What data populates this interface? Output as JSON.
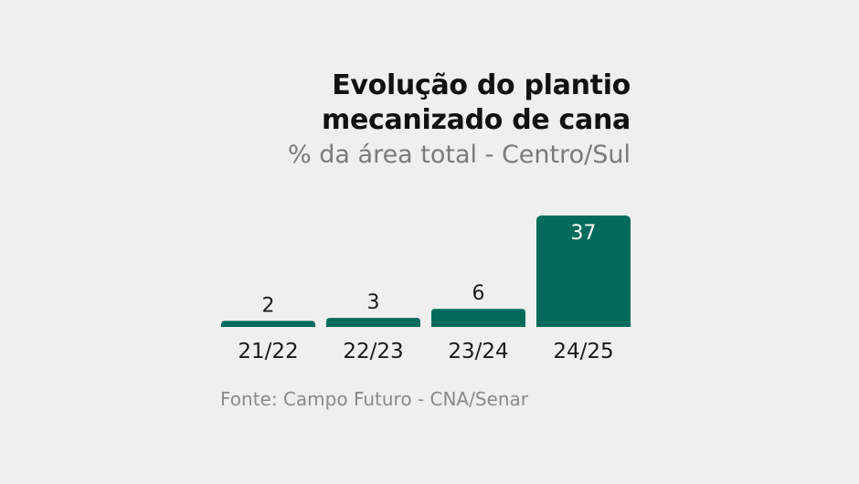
{
  "title_line1": "Evolução do plantio",
  "title_line2": "mecanizado de cana",
  "subtitle": "% da área total - Centro/Sul",
  "source": "Fonte: Campo Futuro - CNA/Senar",
  "colors": {
    "bar": "#036b5b",
    "background": "#efefef",
    "title": "#111111",
    "subtitle": "#7a7a7a"
  },
  "chart_data": {
    "type": "bar",
    "title": "Evolução do plantio mecanizado de cana",
    "subtitle": "% da área total - Centro/Sul",
    "categories": [
      "21/22",
      "22/23",
      "23/24",
      "24/25"
    ],
    "values": [
      2,
      3,
      6,
      37
    ],
    "xlabel": "",
    "ylabel": "",
    "ylim": [
      0,
      37
    ],
    "grid": false,
    "legend": "none"
  }
}
